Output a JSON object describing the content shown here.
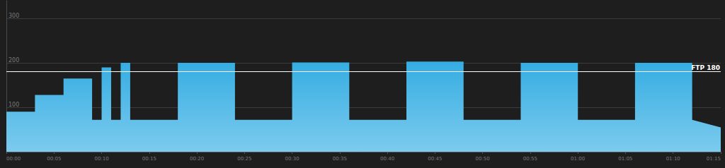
{
  "chart_data": {
    "type": "area",
    "color": "#35ade2",
    "x": [
      0,
      3,
      3,
      6,
      6,
      9,
      9,
      10,
      10,
      11,
      11,
      12,
      12,
      13,
      13,
      18,
      18,
      24,
      24,
      30,
      30,
      36,
      36,
      42,
      42,
      48,
      48,
      54,
      54,
      60,
      60,
      66,
      66,
      72,
      72,
      75
    ],
    "values": [
      90,
      90,
      128,
      128,
      165,
      165,
      72,
      72,
      190,
      190,
      72,
      72,
      200,
      200,
      72,
      72,
      200,
      200,
      72,
      72,
      201,
      201,
      72,
      72,
      203,
      203,
      72,
      72,
      200,
      200,
      72,
      72,
      200,
      200,
      72,
      55
    ],
    "xlim": [
      0,
      75
    ],
    "xticks": [
      {
        "value": 0,
        "label": "00:00"
      },
      {
        "value": 5,
        "label": "00:05"
      },
      {
        "value": 10,
        "label": "00:10"
      },
      {
        "value": 15,
        "label": "00:15"
      },
      {
        "value": 20,
        "label": "00:20"
      },
      {
        "value": 25,
        "label": "00:25"
      },
      {
        "value": 30,
        "label": "00:30"
      },
      {
        "value": 35,
        "label": "00:35"
      },
      {
        "value": 40,
        "label": "00:40"
      },
      {
        "value": 45,
        "label": "00:45"
      },
      {
        "value": 50,
        "label": "00:50"
      },
      {
        "value": 55,
        "label": "00:55"
      },
      {
        "value": 60,
        "label": "01:00"
      },
      {
        "value": 65,
        "label": "01:05"
      },
      {
        "value": 70,
        "label": "01:10"
      },
      {
        "value": 75,
        "label": "01:15"
      }
    ],
    "ylim": [
      0,
      340
    ],
    "yticks": [
      100,
      200,
      300
    ],
    "grid": true,
    "ftp": {
      "value": 180,
      "label": "FTP 180"
    }
  }
}
